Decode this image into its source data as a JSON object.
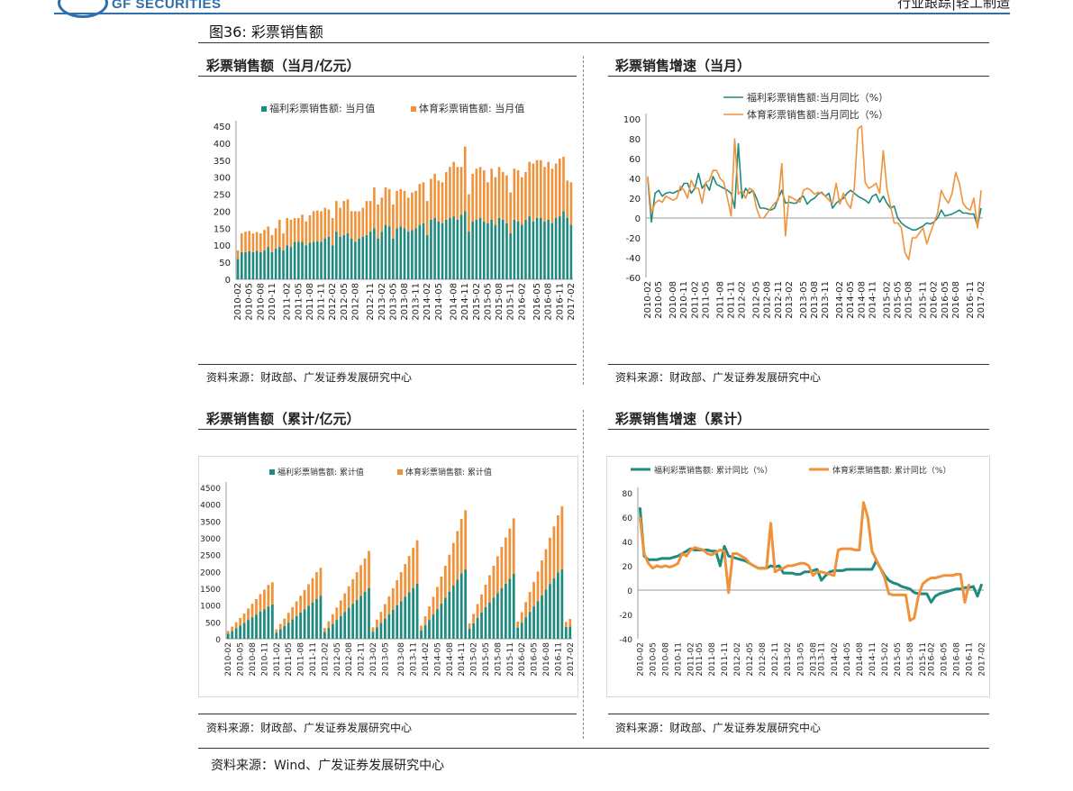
{
  "header": {
    "brand": "GF SECURITIES",
    "right": "行业跟踪|轻工制造"
  },
  "figure_title": "图36:  彩票销售额",
  "footnote": "资料来源：Wind、广发证券发展研究中心",
  "panels": [
    {
      "title": "彩票销售额（当月/亿元）",
      "source": "资料来源：财政部、广发证券发展研究中心"
    },
    {
      "title": "彩票销售增速（当月）",
      "source": "资料来源：财政部、广发证券发展研究中心"
    },
    {
      "title": "彩票销售额（累计/亿元）",
      "source": "资料来源：财政部、广发证券发展研究中心"
    },
    {
      "title": "彩票销售增速（累计）",
      "source": "资料来源：财政部、广发证券发展研究中心"
    }
  ],
  "colors": {
    "welfare": "#1f8a7f",
    "sports": "#f0923a",
    "brand": "#2f6fae"
  },
  "chart_data": [
    {
      "type": "bar",
      "title": "彩票销售额（当月/亿元）",
      "stacked": true,
      "ylim": [
        0,
        450
      ],
      "yticks": [
        0,
        50,
        100,
        150,
        200,
        250,
        300,
        350,
        400,
        450
      ],
      "xticks": [
        "2010-02",
        "2010-05",
        "2010-08",
        "2010-11",
        "2011-02",
        "2011-05",
        "2011-08",
        "2011-11",
        "2012-02",
        "2012-05",
        "2012-08",
        "2012-11",
        "2013-02",
        "2013-05",
        "2013-08",
        "2013-11",
        "2014-02",
        "2014-05",
        "2014-08",
        "2014-11",
        "2015-02",
        "2015-05",
        "2015-08",
        "2015-11",
        "2016-02",
        "2016-05",
        "2016-08",
        "2016-11",
        "2017-02"
      ],
      "legend_position": "top",
      "series": [
        {
          "name": "福利彩票销售额: 当月值",
          "values": [
            60,
            80,
            80,
            82,
            80,
            84,
            80,
            85,
            95,
            80,
            90,
            95,
            85,
            100,
            95,
            110,
            110,
            110,
            100,
            108,
            110,
            112,
            110,
            120,
            125,
            100,
            140,
            125,
            130,
            135,
            120,
            110,
            120,
            125,
            130,
            140,
            150,
            120,
            140,
            160,
            155,
            120,
            150,
            155,
            150,
            140,
            145,
            150,
            160,
            165,
            130,
            175,
            180,
            170,
            165,
            175,
            180,
            185,
            175,
            190,
            200,
            140,
            170,
            175,
            180,
            170,
            165,
            175,
            160,
            180,
            175,
            165,
            135,
            175,
            170,
            160,
            175,
            185,
            170,
            180,
            180,
            170,
            175,
            165,
            180,
            185,
            200,
            180,
            160
          ]
        },
        {
          "name": "体育彩票销售额: 当月值",
          "values": [
            25,
            55,
            60,
            60,
            55,
            55,
            55,
            60,
            60,
            50,
            60,
            80,
            50,
            80,
            80,
            70,
            70,
            80,
            70,
            80,
            90,
            90,
            90,
            90,
            80,
            80,
            90,
            85,
            100,
            100,
            80,
            90,
            80,
            85,
            100,
            90,
            120,
            100,
            100,
            110,
            110,
            100,
            110,
            110,
            110,
            100,
            110,
            110,
            120,
            120,
            100,
            120,
            130,
            120,
            120,
            140,
            150,
            160,
            155,
            140,
            190,
            110,
            140,
            150,
            150,
            150,
            120,
            150,
            140,
            150,
            140,
            140,
            120,
            150,
            150,
            140,
            140,
            160,
            170,
            170,
            170,
            160,
            170,
            160,
            160,
            170,
            160,
            110,
            125
          ]
        }
      ]
    },
    {
      "type": "line",
      "title": "彩票销售增速（当月）",
      "ylim": [
        -60,
        100
      ],
      "yticks": [
        -60,
        -40,
        -20,
        0,
        20,
        40,
        60,
        80,
        100
      ],
      "xticks": [
        "2010-02",
        "2010-05",
        "2010-08",
        "2010-11",
        "2011-02",
        "2011-05",
        "2011-08",
        "2011-11",
        "2012-02",
        "2012-05",
        "2012-08",
        "2012-11",
        "2013-02",
        "2013-05",
        "2013-08",
        "2013-11",
        "2014-02",
        "2014-05",
        "2014-08",
        "2014-11",
        "2015-02",
        "2015-05",
        "2015-08",
        "2015-11",
        "2016-02",
        "2016-05",
        "2016-08",
        "2016-11",
        "2017-02"
      ],
      "legend_position": "top",
      "series": [
        {
          "name": "福利彩票销售额:当月同比（%）",
          "values": [
            40,
            -4,
            25,
            28,
            22,
            25,
            26,
            25,
            27,
            28,
            35,
            35,
            25,
            30,
            45,
            30,
            35,
            28,
            42,
            34,
            32,
            30,
            28,
            25,
            10,
            75,
            20,
            30,
            25,
            28,
            20,
            10,
            10,
            9,
            8,
            10,
            20,
            28,
            15,
            16,
            15,
            15,
            20,
            22,
            14,
            18,
            20,
            24,
            26,
            22,
            25,
            10,
            15,
            18,
            20,
            25,
            28,
            25,
            22,
            20,
            18,
            15,
            22,
            24,
            16,
            22,
            15,
            10,
            12,
            0,
            -5,
            -8,
            -10,
            -12,
            -12,
            -10,
            -8,
            -5,
            -6,
            -4,
            0,
            8,
            2,
            3,
            4,
            6,
            8,
            5,
            5,
            4,
            4,
            -8,
            10
          ]
        },
        {
          "name": "体育彩票销售额:当月同比（%）",
          "values": [
            42,
            5,
            15,
            18,
            16,
            22,
            20,
            18,
            20,
            32,
            28,
            20,
            38,
            30,
            30,
            15,
            36,
            38,
            48,
            48,
            40,
            36,
            20,
            2,
            80,
            24,
            28,
            20,
            30,
            28,
            10,
            0,
            0,
            5,
            10,
            15,
            18,
            55,
            -18,
            22,
            20,
            18,
            16,
            28,
            30,
            28,
            24,
            26,
            25,
            22,
            18,
            15,
            35,
            14,
            25,
            15,
            10,
            30,
            90,
            93,
            36,
            30,
            32,
            35,
            25,
            68,
            30,
            12,
            -5,
            -5,
            -10,
            -35,
            -42,
            -20,
            -20,
            -15,
            -10,
            -26,
            -15,
            -5,
            5,
            28,
            20,
            15,
            25,
            46,
            35,
            15,
            10,
            8,
            20,
            -10,
            28
          ]
        }
      ]
    },
    {
      "type": "bar",
      "title": "彩票销售额（累计/亿元）",
      "stacked": true,
      "ylim": [
        0,
        4500
      ],
      "yticks": [
        0,
        500,
        1000,
        1500,
        2000,
        2500,
        3000,
        3500,
        4000,
        4500
      ],
      "xticks": [
        "2010-02",
        "2010-05",
        "2010-08",
        "2010-11",
        "2011-02",
        "2011-05",
        "2011-08",
        "2011-11",
        "2012-02",
        "2012-05",
        "2012-08",
        "2012-11",
        "2013-02",
        "2013-05",
        "2013-08",
        "2013-11",
        "2014-02",
        "2014-05",
        "2014-08",
        "2014-11",
        "2015-02",
        "2015-05",
        "2015-08",
        "2015-11",
        "2016-02",
        "2016-05",
        "2016-08",
        "2016-11",
        "2017-02"
      ],
      "legend_position": "top",
      "series": [
        {
          "name": "福利彩票销售额: 累计值",
          "values": [
            150,
            230,
            310,
            390,
            470,
            560,
            640,
            720,
            810,
            880,
            960,
            1020,
            180,
            280,
            380,
            480,
            580,
            680,
            780,
            880,
            980,
            1080,
            1180,
            1280,
            200,
            320,
            440,
            560,
            680,
            800,
            920,
            1040,
            1160,
            1280,
            1400,
            1510,
            210,
            340,
            470,
            600,
            730,
            860,
            990,
            1120,
            1250,
            1380,
            1510,
            1640,
            240,
            400,
            560,
            720,
            880,
            1050,
            1220,
            1400,
            1580,
            1760,
            1940,
            2060,
            300,
            460,
            620,
            780,
            940,
            1080,
            1220,
            1360,
            1500,
            1640,
            1780,
            1930,
            330,
            480,
            640,
            800,
            960,
            1120,
            1290,
            1460,
            1630,
            1800,
            1970,
            2060,
            350,
            360
          ]
        },
        {
          "name": "体育彩票销售额: 累计值",
          "values": [
            80,
            130,
            180,
            230,
            280,
            340,
            400,
            460,
            520,
            580,
            640,
            660,
            100,
            160,
            220,
            290,
            360,
            430,
            500,
            570,
            640,
            720,
            800,
            830,
            120,
            200,
            290,
            370,
            460,
            550,
            640,
            730,
            820,
            910,
            990,
            1100,
            130,
            230,
            330,
            430,
            530,
            640,
            750,
            860,
            970,
            1080,
            1190,
            1290,
            150,
            270,
            400,
            530,
            660,
            800,
            950,
            1100,
            1270,
            1440,
            1620,
            1760,
            160,
            280,
            410,
            540,
            670,
            810,
            950,
            1090,
            1230,
            1370,
            1500,
            1650,
            180,
            310,
            450,
            590,
            730,
            880,
            1040,
            1200,
            1370,
            1540,
            1700,
            1880,
            150,
            230
          ]
        }
      ]
    },
    {
      "type": "line",
      "title": "彩票销售增速（累计）",
      "ylim": [
        -40,
        80
      ],
      "yticks": [
        -40,
        -20,
        0,
        20,
        40,
        60,
        80
      ],
      "xticks": [
        "2010-02",
        "2010-05",
        "2010-08",
        "2010-11",
        "2011-02",
        "2011-05",
        "2011-08",
        "2011-11",
        "2012-02",
        "2012-05",
        "2012-08",
        "2012-11",
        "2013-02",
        "2013-05",
        "2013-08",
        "2013-11",
        "2014-02",
        "2014-05",
        "2014-08",
        "2014-11",
        "2015-02",
        "2015-05",
        "2015-08",
        "2015-11",
        "2016-02",
        "2016-05",
        "2016-08",
        "2016-11",
        "2017-02"
      ],
      "legend_position": "top",
      "series": [
        {
          "name": "福利彩票销售额: 累计同比（%）",
          "values": [
            68,
            28,
            25,
            25,
            25,
            26,
            26,
            26,
            27,
            28,
            30,
            32,
            34,
            33,
            33,
            33,
            33,
            32,
            32,
            20,
            36,
            28,
            27,
            26,
            25,
            24,
            22,
            20,
            18,
            18,
            18,
            20,
            19,
            20,
            14,
            14,
            14,
            13,
            13,
            15,
            15,
            16,
            17,
            8,
            12,
            15,
            16,
            16,
            16,
            17,
            17,
            17,
            17,
            17,
            17,
            17,
            24,
            18,
            12,
            8,
            6,
            5,
            3,
            2,
            1,
            -2,
            -3,
            -3,
            -3,
            -10,
            -5,
            -3,
            -2,
            -1,
            0,
            1,
            1,
            2,
            2,
            3,
            -5,
            5
          ]
        },
        {
          "name": "体育彩票销售额: 累计同比（%）",
          "values": [
            60,
            30,
            22,
            18,
            20,
            19,
            20,
            19,
            20,
            22,
            30,
            28,
            33,
            35,
            34,
            33,
            30,
            29,
            31,
            33,
            32,
            -2,
            30,
            30,
            28,
            26,
            22,
            20,
            18,
            18,
            18,
            55,
            15,
            17,
            18,
            20,
            20,
            21,
            22,
            22,
            20,
            12,
            15,
            15,
            14,
            13,
            12,
            33,
            34,
            34,
            34,
            33,
            33,
            72,
            60,
            32,
            25,
            18,
            10,
            -3,
            -4,
            -4,
            -4,
            -4,
            -25,
            -23,
            -5,
            5,
            8,
            10,
            10,
            11,
            12,
            12,
            12,
            13,
            13,
            -10,
            5
          ]
        }
      ]
    }
  ]
}
